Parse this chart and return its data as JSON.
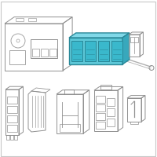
{
  "background_color": "#ffffff",
  "border_color": "#c8c8c8",
  "highlight_color": "#5ec8d8",
  "highlight_top": "#80d8e8",
  "highlight_right": "#38a8bc",
  "highlight_edge": "#2a8898",
  "line_color": "#909090",
  "line_color2": "#b0b0b0",
  "line_width": 0.7,
  "fig_width": 2.0,
  "fig_height": 2.0,
  "dpi": 100
}
